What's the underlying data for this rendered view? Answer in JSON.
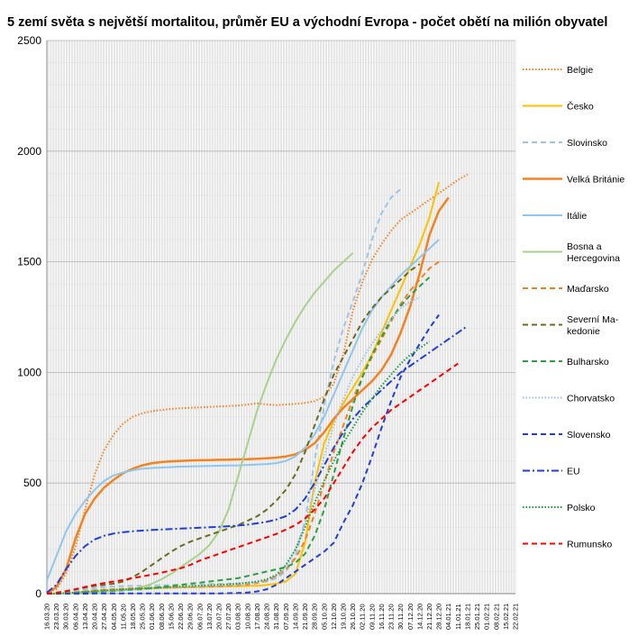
{
  "chart_data": {
    "type": "line",
    "title": "5 zemí světa s největší mortalitou, průměr EU a východní Evropa - počet obětí na milión obyvatel",
    "xlabel": "",
    "ylabel": "",
    "ylim": [
      0,
      2500
    ],
    "yticks": [
      0,
      500,
      1000,
      1500,
      2000,
      2500
    ],
    "grid": true,
    "legend": "right",
    "x_tick_labels": [
      "16.03.20",
      "23.03.20",
      "30.03.20",
      "06.04.20",
      "13.04.20",
      "20.04.20",
      "27.04.20",
      "04.05.20",
      "11.05.20",
      "18.05.20",
      "25.05.20",
      "01.06.20",
      "08.06.20",
      "15.06.20",
      "22.06.20",
      "29.06.20",
      "06.07.20",
      "13.07.20",
      "20.07.20",
      "27.07.20",
      "03.08.20",
      "10.08.20",
      "17.08.20",
      "24.08.20",
      "31.08.20",
      "07.09.20",
      "14.09.20",
      "21.09.20",
      "28.09.20",
      "05.10.20",
      "12.10.20",
      "19.10.20",
      "26.10.20",
      "02.11.20",
      "09.11.20",
      "16.11.20",
      "23.11.20",
      "30.11.20",
      "07.12.20",
      "14.12.20",
      "21.12.20",
      "28.12.20",
      "04.01.21",
      "11.01.21",
      "18.01.21",
      "25.01.21",
      "01.02.21",
      "08.02.21",
      "15.02.21",
      "22.02.21"
    ],
    "series": [
      {
        "name": "Belgie",
        "color": "#f58220",
        "dash": "1.5,2",
        "width": 2,
        "values": [
          5,
          20,
          90,
          210,
          380,
          540,
          650,
          720,
          770,
          800,
          815,
          825,
          830,
          835,
          838,
          840,
          842,
          844,
          846,
          848,
          850,
          855,
          860,
          855,
          852,
          855,
          858,
          862,
          870,
          890,
          950,
          1080,
          1280,
          1410,
          1510,
          1580,
          1640,
          1690,
          1720,
          1750,
          1780,
          1810,
          1840,
          1870,
          1895
        ]
      },
      {
        "name": "Česko",
        "color": "#ffc000",
        "dash": "",
        "width": 2,
        "values": [
          0,
          0,
          2,
          5,
          8,
          10,
          12,
          15,
          18,
          20,
          22,
          24,
          26,
          27,
          28,
          29,
          30,
          31,
          32,
          33,
          34,
          35,
          36,
          40,
          45,
          55,
          90,
          230,
          500,
          680,
          780,
          860,
          930,
          1000,
          1080,
          1180,
          1280,
          1380,
          1480,
          1580,
          1700,
          1860
        ]
      },
      {
        "name": "Slovinsko",
        "color": "#9dc3e6",
        "dash": "6,4",
        "width": 2,
        "values": [
          0,
          2,
          6,
          12,
          20,
          25,
          30,
          32,
          34,
          35,
          36,
          37,
          38,
          39,
          40,
          41,
          42,
          43,
          44,
          45,
          46,
          48,
          50,
          55,
          70,
          100,
          170,
          330,
          600,
          850,
          1050,
          1200,
          1320,
          1450,
          1600,
          1720,
          1790,
          1830
        ]
      },
      {
        "name": "Velká Británie",
        "color": "#f58220",
        "dash": "",
        "width": 2.5,
        "values": [
          0,
          30,
          110,
          250,
          360,
          430,
          480,
          515,
          545,
          565,
          580,
          590,
          595,
          598,
          600,
          602,
          603,
          604,
          605,
          606,
          607,
          608,
          610,
          612,
          615,
          620,
          630,
          650,
          680,
          730,
          790,
          840,
          880,
          920,
          960,
          1010,
          1080,
          1180,
          1300,
          1450,
          1620,
          1730,
          1790
        ]
      },
      {
        "name": "Itálie",
        "color": "#8ec6f0",
        "dash": "",
        "width": 2,
        "values": [
          60,
          170,
          280,
          360,
          420,
          470,
          510,
          535,
          548,
          558,
          565,
          568,
          570,
          572,
          574,
          575,
          576,
          577,
          578,
          579,
          580,
          582,
          584,
          586,
          590,
          600,
          620,
          660,
          720,
          800,
          900,
          1000,
          1100,
          1200,
          1280,
          1340,
          1390,
          1440,
          1480,
          1520,
          1560,
          1600
        ]
      },
      {
        "name": "Bosna a\nHercegovina",
        "color": "#a9d18e",
        "dash": "",
        "width": 2,
        "values": [
          0,
          1,
          2,
          4,
          6,
          8,
          10,
          12,
          15,
          20,
          30,
          45,
          65,
          90,
          120,
          150,
          180,
          220,
          280,
          380,
          530,
          680,
          830,
          950,
          1060,
          1150,
          1230,
          1300,
          1360,
          1410,
          1460,
          1500,
          1540
        ]
      },
      {
        "name": "Maďarsko",
        "color": "#f58220",
        "dash": "6,4",
        "width": 2,
        "values": [
          0,
          0,
          2,
          5,
          10,
          15,
          18,
          20,
          22,
          24,
          25,
          26,
          27,
          28,
          29,
          30,
          31,
          32,
          33,
          35,
          38,
          42,
          48,
          60,
          80,
          110,
          160,
          240,
          360,
          500,
          640,
          760,
          880,
          980,
          1070,
          1150,
          1230,
          1310,
          1370,
          1420,
          1470,
          1500
        ]
      },
      {
        "name": "Severní Ma-\nkedonie",
        "color": "#6b6b1f",
        "dash": "6,4",
        "width": 2,
        "values": [
          0,
          5,
          12,
          20,
          28,
          35,
          40,
          45,
          55,
          75,
          100,
          130,
          160,
          190,
          215,
          235,
          250,
          265,
          280,
          295,
          310,
          330,
          350,
          380,
          420,
          470,
          540,
          640,
          760,
          880,
          990,
          1070,
          1150,
          1230,
          1290,
          1340,
          1380,
          1420,
          1460,
          1490
        ]
      },
      {
        "name": "Bulharsko",
        "color": "#2e9e45",
        "dash": "6,4",
        "width": 2,
        "values": [
          0,
          0,
          1,
          3,
          5,
          7,
          10,
          12,
          15,
          18,
          20,
          25,
          30,
          35,
          40,
          45,
          50,
          55,
          60,
          65,
          70,
          80,
          90,
          100,
          110,
          120,
          140,
          180,
          260,
          380,
          540,
          700,
          850,
          980,
          1080,
          1160,
          1240,
          1300,
          1350,
          1390,
          1430
        ]
      },
      {
        "name": "Chorvatsko",
        "color": "#9dc3e6",
        "dash": "1.5,2",
        "width": 2,
        "values": [
          0,
          1,
          3,
          5,
          8,
          10,
          12,
          14,
          16,
          18,
          20,
          22,
          24,
          26,
          28,
          30,
          32,
          34,
          36,
          38,
          40,
          45,
          50,
          60,
          80,
          120,
          200,
          320,
          470,
          620,
          760,
          880,
          980,
          1060,
          1130,
          1190,
          1240,
          1290,
          1320,
          1340
        ]
      },
      {
        "name": "Slovensko",
        "color": "#1f3fd6",
        "dash": "6,4",
        "width": 2,
        "values": [
          0,
          0,
          0,
          0,
          0,
          1,
          1,
          1,
          1,
          1,
          1,
          1,
          1,
          1,
          1,
          1,
          1,
          1,
          1,
          2,
          3,
          5,
          10,
          20,
          40,
          70,
          100,
          130,
          160,
          190,
          230,
          320,
          400,
          500,
          620,
          750,
          870,
          980,
          1060,
          1130,
          1200,
          1260
        ]
      },
      {
        "name": "EU",
        "color": "#1f3fd6",
        "dash": "8,3,2,3",
        "width": 2,
        "values": [
          5,
          40,
          110,
          170,
          215,
          245,
          262,
          272,
          278,
          282,
          285,
          288,
          290,
          292,
          294,
          296,
          298,
          300,
          302,
          305,
          308,
          312,
          318,
          325,
          335,
          350,
          380,
          430,
          500,
          580,
          660,
          730,
          790,
          840,
          880,
          920,
          960,
          1000,
          1030,
          1060,
          1090,
          1120,
          1150,
          1180,
          1210
        ]
      },
      {
        "name": "Polsko",
        "color": "#1a9e3a",
        "dash": "1.5,2",
        "width": 2,
        "values": [
          0,
          0,
          2,
          5,
          8,
          12,
          15,
          18,
          20,
          22,
          24,
          26,
          28,
          30,
          32,
          34,
          36,
          38,
          40,
          42,
          45,
          50,
          55,
          65,
          85,
          130,
          200,
          300,
          410,
          510,
          600,
          680,
          750,
          820,
          880,
          940,
          990,
          1040,
          1080,
          1110,
          1140
        ]
      },
      {
        "name": "Rumunsko",
        "color": "#ff0000",
        "dash": "6,4",
        "width": 2,
        "values": [
          0,
          3,
          10,
          20,
          30,
          40,
          48,
          55,
          62,
          70,
          78,
          86,
          95,
          105,
          115,
          130,
          150,
          165,
          180,
          195,
          210,
          225,
          240,
          255,
          270,
          290,
          310,
          340,
          380,
          430,
          500,
          570,
          640,
          700,
          750,
          790,
          830,
          860,
          890,
          920,
          950,
          980,
          1010,
          1040
        ]
      }
    ]
  }
}
